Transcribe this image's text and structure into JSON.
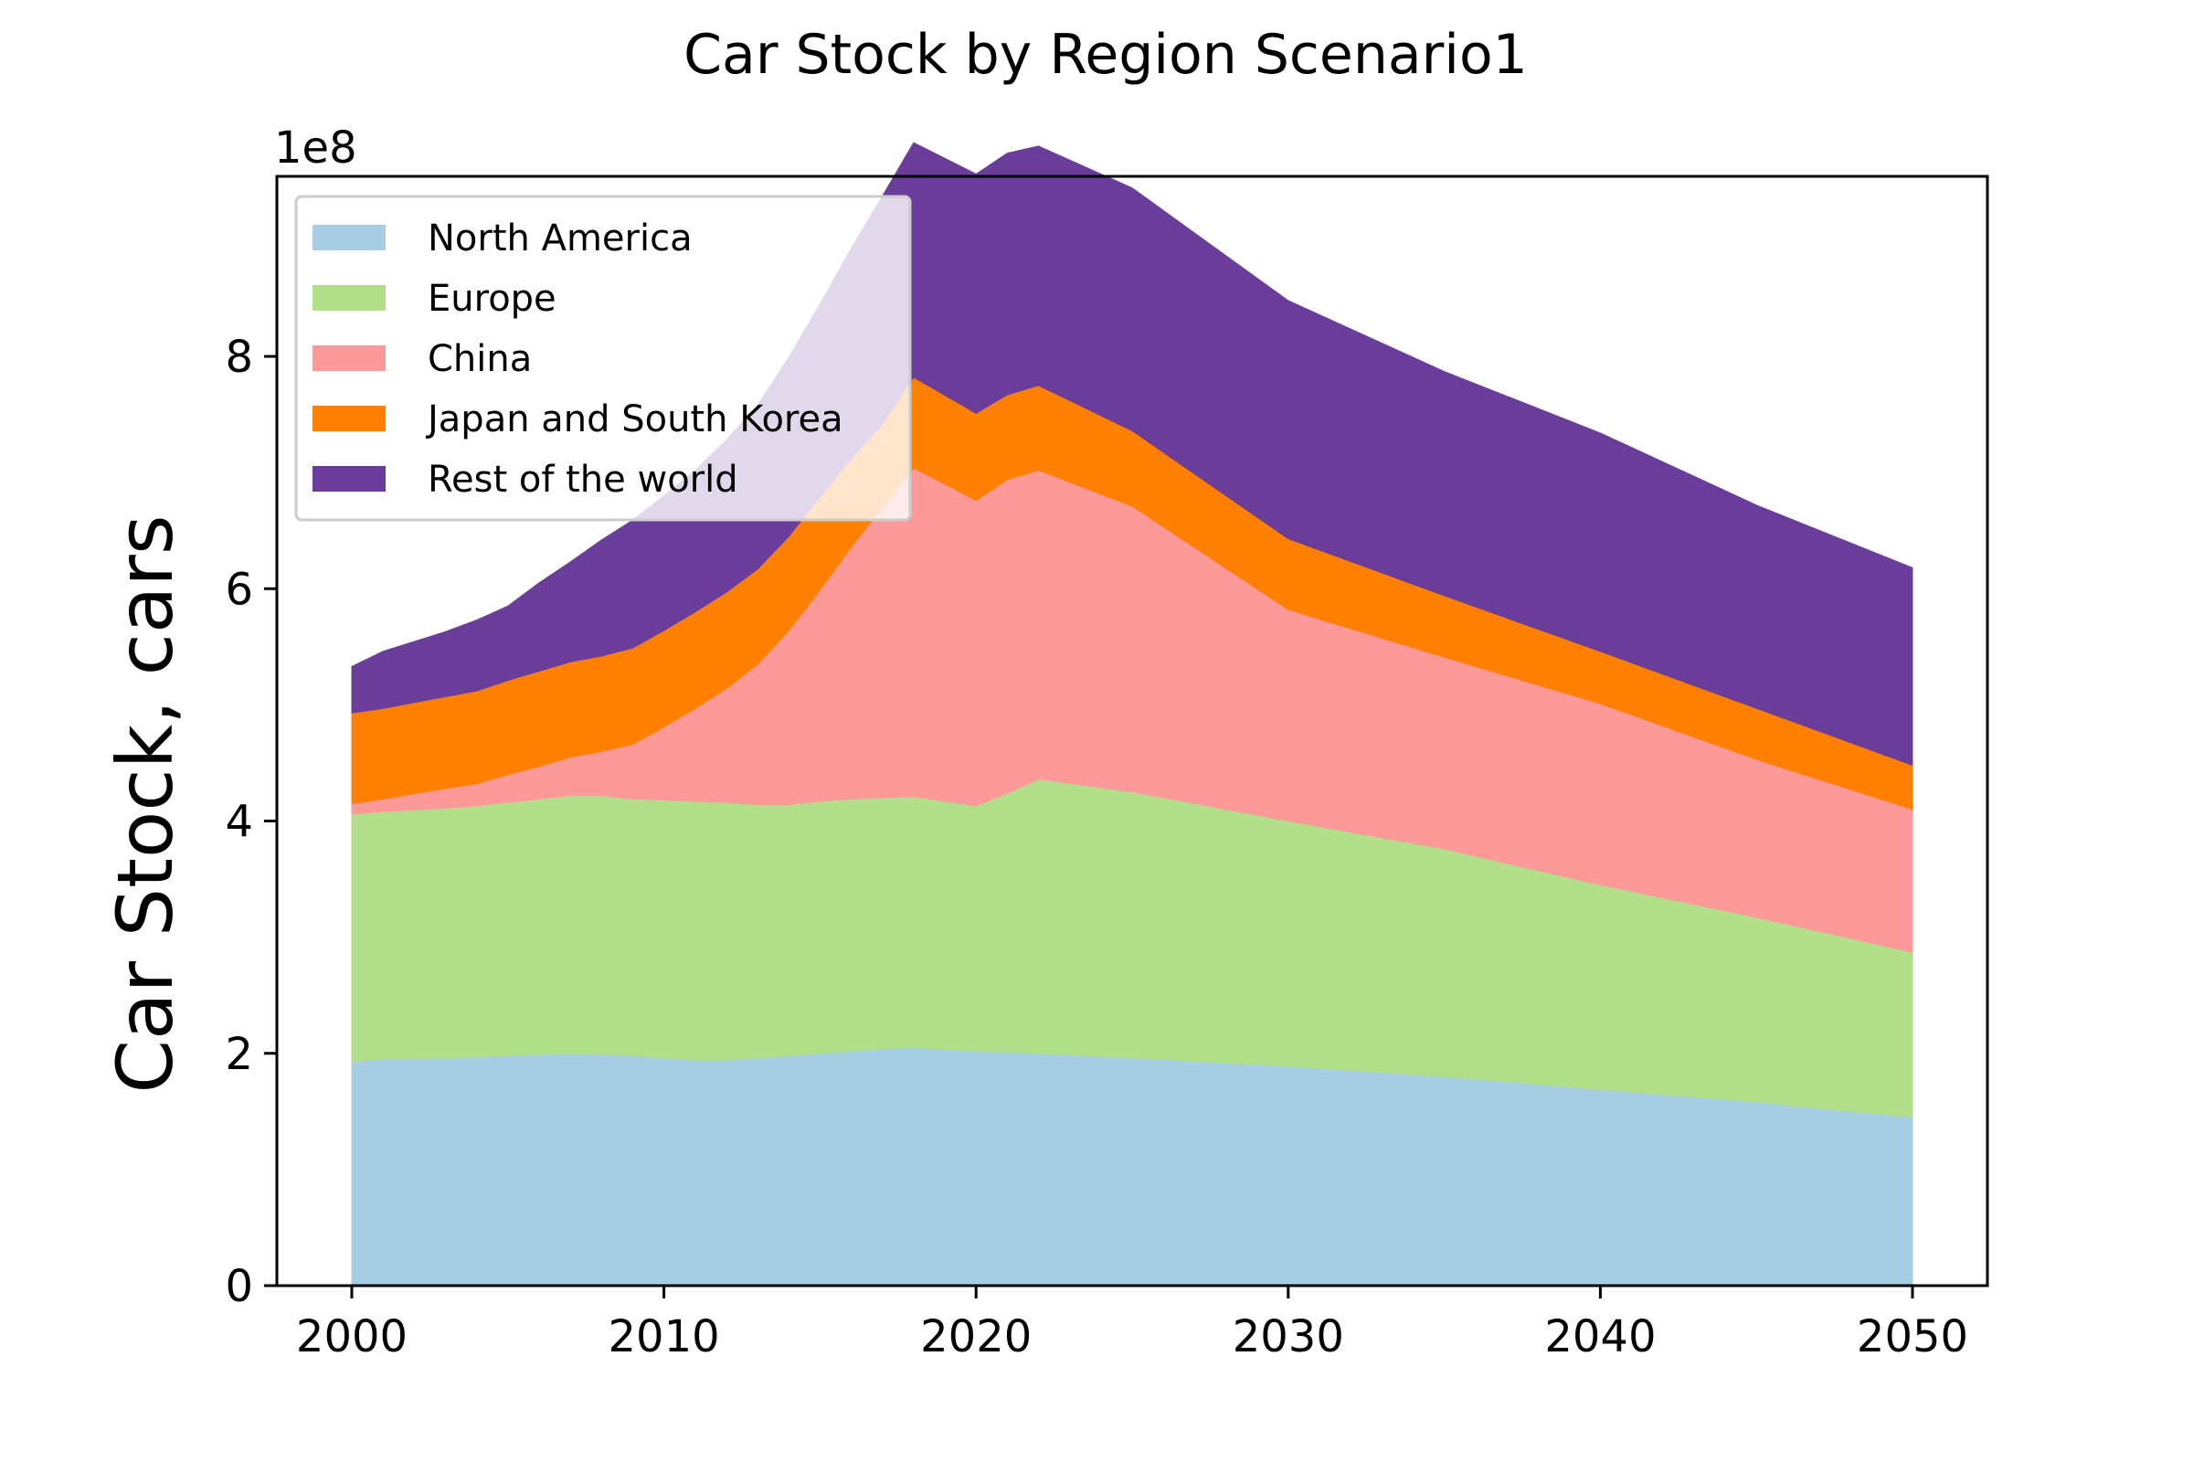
{
  "chart_data": {
    "type": "area",
    "stacked": true,
    "title": "Car Stock by Region Scenario1",
    "xlabel": "",
    "ylabel": "Car Stock, cars",
    "y_offset_label": "1e8",
    "xlim": [
      1997.6,
      2052.4
    ],
    "ylim": [
      0,
      9.55
    ],
    "y_multiplier": 100000000,
    "x_ticks": [
      2000,
      2010,
      2020,
      2030,
      2040,
      2050
    ],
    "y_ticks": [
      0,
      2,
      4,
      6,
      8
    ],
    "legend_position": "upper-left",
    "grid": false,
    "x": [
      2000,
      2001,
      2003,
      2004,
      2005,
      2006,
      2007,
      2008,
      2009,
      2010,
      2011,
      2012,
      2013,
      2014,
      2015,
      2016,
      2017,
      2018,
      2020,
      2021,
      2022,
      2025,
      2030,
      2035,
      2040,
      2045,
      2050
    ],
    "series": [
      {
        "name": "North America",
        "color": "#a6cee3",
        "values": [
          1.93,
          1.95,
          1.96,
          1.97,
          1.98,
          1.99,
          2.0,
          1.99,
          1.98,
          1.96,
          1.94,
          1.94,
          1.96,
          1.98,
          2.0,
          2.02,
          2.04,
          2.05,
          2.02,
          2.01,
          2.0,
          1.96,
          1.89,
          1.8,
          1.69,
          1.58,
          1.45
        ]
      },
      {
        "name": "Europe",
        "color": "#b2df8a",
        "values": [
          2.13,
          2.13,
          2.15,
          2.16,
          2.18,
          2.2,
          2.22,
          2.23,
          2.21,
          2.22,
          2.23,
          2.22,
          2.18,
          2.16,
          2.17,
          2.17,
          2.16,
          2.16,
          2.11,
          2.23,
          2.36,
          2.29,
          2.11,
          1.96,
          1.76,
          1.59,
          1.42
        ]
      },
      {
        "name": "China",
        "color": "#fb9a99",
        "values": [
          0.09,
          0.11,
          0.17,
          0.19,
          0.24,
          0.28,
          0.33,
          0.38,
          0.47,
          0.63,
          0.8,
          0.98,
          1.21,
          1.5,
          1.82,
          2.17,
          2.5,
          2.83,
          2.63,
          2.7,
          2.66,
          2.46,
          1.82,
          1.65,
          1.56,
          1.36,
          1.23
        ]
      },
      {
        "name": "Japan and South Korea",
        "color": "#ff7f00",
        "values": [
          0.78,
          0.78,
          0.79,
          0.8,
          0.81,
          0.82,
          0.82,
          0.82,
          0.83,
          0.83,
          0.83,
          0.83,
          0.82,
          0.81,
          0.8,
          0.76,
          0.72,
          0.78,
          0.75,
          0.73,
          0.73,
          0.65,
          0.61,
          0.53,
          0.45,
          0.44,
          0.38
        ]
      },
      {
        "name": "Rest of the world",
        "color": "#6a3d9a",
        "values": [
          0.4,
          0.49,
          0.56,
          0.61,
          0.64,
          0.76,
          0.86,
          1.0,
          1.1,
          1.16,
          1.22,
          1.31,
          1.41,
          1.54,
          1.66,
          1.81,
          1.96,
          2.02,
          2.06,
          2.08,
          2.06,
          2.09,
          2.05,
          1.93,
          1.88,
          1.75,
          1.7
        ]
      }
    ]
  }
}
